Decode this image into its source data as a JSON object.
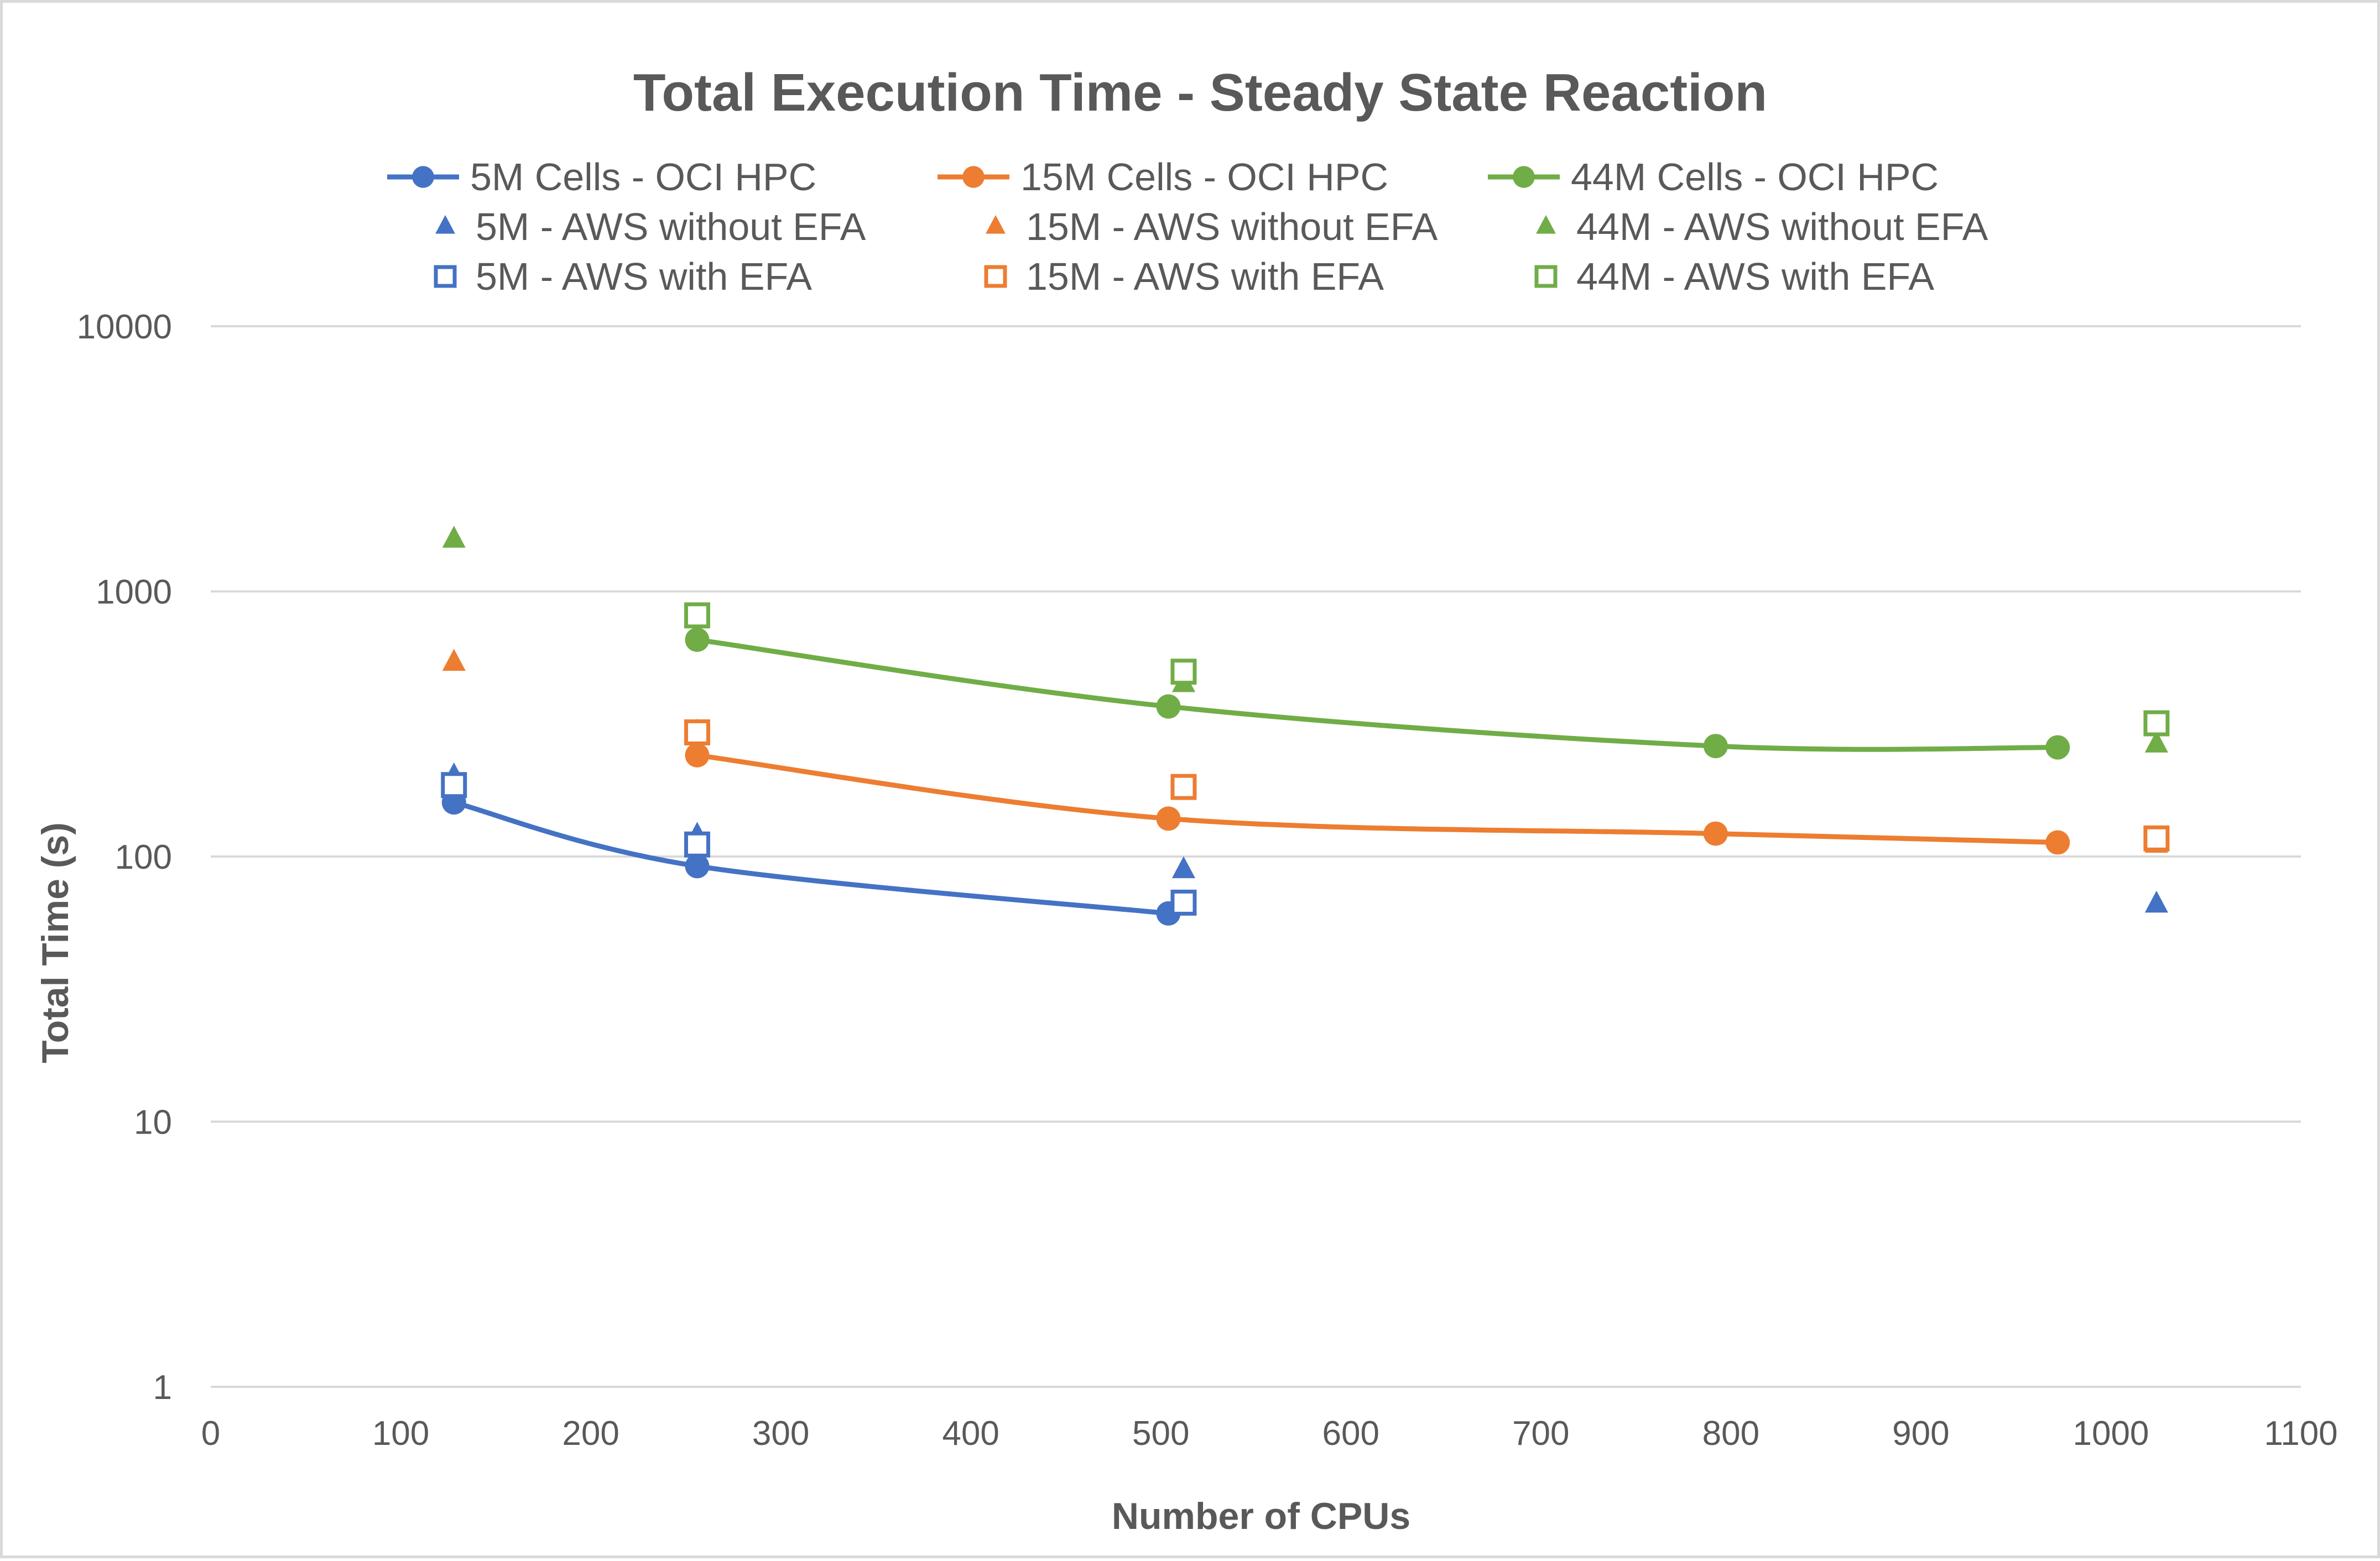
{
  "chart_data": {
    "type": "line",
    "title": "Total Execution Time - Steady State Reaction",
    "xlabel": "Number of CPUs",
    "ylabel": "Total Time (s)",
    "xlim": [
      0,
      1100
    ],
    "xticks": [
      0,
      100,
      200,
      300,
      400,
      500,
      600,
      700,
      800,
      900,
      1000,
      1100
    ],
    "yscale": "log",
    "ylim": [
      1,
      10000
    ],
    "yticks": [
      1,
      10,
      100,
      1000,
      10000
    ],
    "grid": "horizontal",
    "legend_position": "top",
    "series": [
      {
        "name": "5M Cells - OCI HPC",
        "color": "#4472c4",
        "marker": "circle",
        "line": true,
        "x": [
          128,
          256,
          504
        ],
        "y": [
          160,
          92,
          61
        ]
      },
      {
        "name": "15M Cells - OCI HPC",
        "color": "#ed7d31",
        "marker": "circle",
        "line": true,
        "x": [
          256,
          504,
          792,
          972
        ],
        "y": [
          241,
          139,
          122,
          113
        ]
      },
      {
        "name": "44M Cells - OCI HPC",
        "color": "#70ad47",
        "marker": "circle",
        "line": true,
        "x": [
          256,
          504,
          792,
          972
        ],
        "y": [
          657,
          368,
          261,
          258
        ]
      },
      {
        "name": "5M - AWS without EFA",
        "color": "#4472c4",
        "marker": "triangle",
        "line": false,
        "x": [
          128,
          256,
          512,
          1024
        ],
        "y": [
          201,
          120,
          89,
          66
        ]
      },
      {
        "name": "15M - AWS without EFA",
        "color": "#ed7d31",
        "marker": "triangle",
        "line": false,
        "x": [
          128,
          256,
          512,
          1024
        ],
        "y": [
          539,
          294,
          178,
          111
        ]
      },
      {
        "name": "44M - AWS without EFA",
        "color": "#70ad47",
        "marker": "triangle",
        "line": false,
        "x": [
          128,
          256,
          512,
          1024
        ],
        "y": [
          1570,
          799,
          448,
          265
        ]
      },
      {
        "name": "5M - AWS with EFA",
        "color": "#4472c4",
        "marker": "square-open",
        "line": false,
        "x": [
          128,
          256,
          512
        ],
        "y": [
          186,
          111,
          67
        ]
      },
      {
        "name": "15M - AWS with EFA",
        "color": "#ed7d31",
        "marker": "square-open",
        "line": false,
        "x": [
          256,
          512,
          1024
        ],
        "y": [
          294,
          183,
          117
        ]
      },
      {
        "name": "44M - AWS with EFA",
        "color": "#70ad47",
        "marker": "square-open",
        "line": false,
        "x": [
          256,
          512,
          1024
        ],
        "y": [
          812,
          498,
          318
        ]
      }
    ]
  }
}
